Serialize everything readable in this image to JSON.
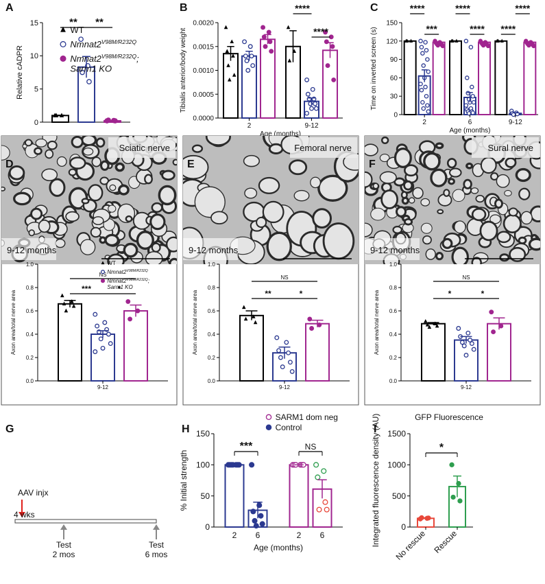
{
  "chart_data": [
    {
      "type": "bar",
      "panel": "A",
      "ylabel": "Relative cADPR",
      "categories": [
        null
      ],
      "ylim": [
        0,
        15
      ],
      "yticks": [
        0,
        5,
        10,
        15
      ],
      "series": [
        {
          "name": "WT",
          "color": "#000000",
          "marker": "triangle",
          "values": [
            1.0
          ],
          "errors": [
            0.05
          ],
          "points": [
            [
              1.0,
              1.0,
              1.0
            ]
          ]
        },
        {
          "name": "Nmnat2",
          "name_sup": "V98M/R232Q",
          "color": "#2b3990",
          "marker": "open",
          "values": [
            8.3
          ],
          "errors": [
            1.6
          ],
          "points": [
            [
              12.5,
              8.5,
              7.5,
              6.1
            ]
          ]
        },
        {
          "name": "Nmnat2",
          "name_sup": "V98M/R232Q",
          "name_suffix": ";",
          "name_line2": "Sarm1 KO",
          "color": "#a0258f",
          "marker": "filled",
          "values": [
            0.2
          ],
          "errors": [
            0.05
          ],
          "points": [
            [
              0.2,
              0.25,
              0.3,
              0.2
            ]
          ]
        }
      ],
      "significance": [
        {
          "label": "**",
          "from": [
            0,
            0
          ],
          "to": [
            0,
            1
          ]
        },
        {
          "label": "**",
          "from": [
            0,
            1
          ],
          "to": [
            0,
            2
          ]
        }
      ]
    },
    {
      "type": "bar",
      "panel": "B",
      "ylabel": "Tibialis anterior/body weight",
      "xlabel": "Age (months)",
      "categories": [
        "2",
        "9-12"
      ],
      "ylim": [
        0,
        0.002
      ],
      "yticks": [
        {
          "value": 0,
          "label": "0.0000"
        },
        0.0005,
        {
          "value": 0.001,
          "label": "0.0010"
        },
        0.0015,
        {
          "value": 0.002,
          "label": "0.0020"
        }
      ],
      "series": [
        {
          "color": "#000000",
          "marker": "triangle",
          "values": [
            0.00135,
            0.0015
          ],
          "errors": [
            0.00015,
            0.00033
          ],
          "points": [
            [
              0.0019,
              0.0016,
              0.0014,
              0.0013,
              0.0011,
              0.0009,
              0.0008
            ],
            [
              0.0019,
              0.0014,
              0.0012
            ]
          ]
        },
        {
          "color": "#2b3990",
          "marker": "open",
          "values": [
            0.0013,
            0.00035
          ],
          "errors": [
            0.0001,
            7e-05
          ],
          "points": [
            [
              0.0016,
              0.0015,
              0.0013,
              0.0013,
              0.0012,
              0.0011,
              0.001
            ],
            [
              0.0008,
              0.0006,
              0.0005,
              0.0004,
              0.0004,
              0.0003,
              0.0003,
              0.0002,
              0.0002,
              0.0001
            ]
          ]
        },
        {
          "color": "#a0258f",
          "marker": "filled",
          "values": [
            0.00165,
            0.00142
          ],
          "errors": [
            0.0001,
            0.00016
          ],
          "points": [
            [
              0.0019,
              0.0018,
              0.0017,
              0.0016,
              0.0015,
              0.0014
            ],
            [
              0.0018,
              0.0017,
              0.0016,
              0.0015,
              0.0011,
              0.0008
            ]
          ]
        }
      ],
      "significance": [
        {
          "label": "****",
          "from": [
            1,
            0
          ],
          "to": [
            1,
            1
          ]
        },
        {
          "label": "****",
          "from": [
            1,
            1
          ],
          "to": [
            1,
            2
          ]
        }
      ]
    },
    {
      "type": "bar",
      "panel": "C",
      "ylabel": "Time on inverted screen (s)",
      "xlabel": "Age (months)",
      "categories": [
        "2",
        "6",
        "9-12"
      ],
      "ylim": [
        0,
        150
      ],
      "yticks": [
        0,
        30,
        60,
        90,
        120,
        150
      ],
      "series": [
        {
          "color": "#000000",
          "marker": "triangle",
          "values": [
            120,
            120,
            120
          ],
          "errors": [
            0,
            0,
            0
          ],
          "points": [
            [
              120,
              120,
              120
            ],
            [
              120,
              120,
              120
            ],
            [
              120,
              120,
              120
            ]
          ]
        },
        {
          "color": "#2b3990",
          "marker": "open",
          "values": [
            63,
            28,
            2
          ],
          "errors": [
            10,
            8,
            1
          ],
          "points": [
            [
              120,
              118,
              110,
              105,
              100,
              90,
              80,
              70,
              60,
              50,
              45,
              40,
              30,
              20,
              15,
              10,
              5
            ],
            [
              120,
              110,
              60,
              45,
              35,
              30,
              25,
              20,
              20,
              15,
              10,
              8,
              5,
              5,
              3,
              2
            ],
            [
              6,
              3,
              2,
              1,
              0
            ]
          ]
        },
        {
          "color": "#a0258f",
          "marker": "filled",
          "values": [
            118,
            118,
            118
          ],
          "errors": [
            1,
            1,
            1
          ],
          "points": [
            [
              120,
              118,
              117,
              116,
              115,
              114,
              113,
              112
            ],
            [
              120,
              118,
              117,
              116,
              115,
              114,
              113,
              112
            ],
            [
              120,
              118,
              117,
              116,
              115,
              114,
              113,
              112
            ]
          ]
        }
      ],
      "significance": [
        {
          "label": "****",
          "from": [
            0,
            0
          ],
          "to": [
            0,
            1
          ]
        },
        {
          "label": "***",
          "from": [
            0,
            1
          ],
          "to": [
            0,
            2
          ]
        },
        {
          "label": "****",
          "from": [
            1,
            0
          ],
          "to": [
            1,
            1
          ]
        },
        {
          "label": "****",
          "from": [
            1,
            1
          ],
          "to": [
            1,
            2
          ]
        },
        {
          "label": "****",
          "from": [
            2,
            0
          ],
          "to": [
            2,
            1
          ]
        },
        {
          "label": "****",
          "from": [
            2,
            1
          ],
          "to": [
            2,
            2
          ]
        }
      ]
    },
    {
      "type": "bar",
      "panel": "D",
      "image_label": "Sciatic nerve",
      "image_caption": "9-12 months",
      "ylabel": "Axon area/total nerve area",
      "categories": [
        "9-12"
      ],
      "ylim": [
        0,
        1.0
      ],
      "yticks": [
        {
          "value": 0,
          "label": "0.0"
        },
        0.2,
        0.4,
        0.6,
        0.8,
        {
          "value": 1.0,
          "label": "1.0"
        }
      ],
      "series": [
        {
          "name": "WT",
          "color": "#000000",
          "marker": "triangle",
          "values": [
            0.66
          ],
          "errors": [
            0.03
          ],
          "points": [
            [
              0.73,
              0.68,
              0.66,
              0.64,
              0.6
            ]
          ]
        },
        {
          "name": "Nmnat2",
          "name_sup": "V98M/R232Q",
          "color": "#2b3990",
          "marker": "open",
          "values": [
            0.4
          ],
          "errors": [
            0.03
          ],
          "points": [
            [
              0.57,
              0.5,
              0.47,
              0.44,
              0.42,
              0.4,
              0.36,
              0.32,
              0.28,
              0.25
            ]
          ]
        },
        {
          "name": "Nmnat2",
          "name_sup": "V98M/R232Q",
          "name_suffix": ";",
          "name_line2": "Sarm1 KO",
          "color": "#a0258f",
          "marker": "filled",
          "values": [
            0.6
          ],
          "errors": [
            0.05
          ],
          "points": [
            [
              0.68,
              0.6,
              0.53
            ]
          ]
        }
      ],
      "significance": [
        {
          "label": "NS",
          "from": [
            0,
            0
          ],
          "to": [
            0,
            2
          ]
        },
        {
          "label": "***",
          "from": [
            0,
            0
          ],
          "to": [
            0,
            1
          ]
        },
        {
          "label": "*",
          "from": [
            0,
            1
          ],
          "to": [
            0,
            2
          ]
        }
      ]
    },
    {
      "type": "bar",
      "panel": "E",
      "image_label": "Femoral nerve",
      "image_caption": "9-12 months",
      "ylabel": "Axon area/total nerve area",
      "categories": [
        "9-12"
      ],
      "ylim": [
        0,
        1.0
      ],
      "yticks": [
        {
          "value": 0,
          "label": "0.0"
        },
        0.2,
        0.4,
        0.6,
        0.8,
        {
          "value": 1.0,
          "label": "1.0"
        }
      ],
      "series": [
        {
          "color": "#000000",
          "marker": "triangle",
          "values": [
            0.56
          ],
          "errors": [
            0.04
          ],
          "points": [
            [
              0.63,
              0.55,
              0.53,
              0.5
            ]
          ]
        },
        {
          "color": "#2b3990",
          "marker": "open",
          "values": [
            0.24
          ],
          "errors": [
            0.05
          ],
          "points": [
            [
              0.37,
              0.33,
              0.26,
              0.24,
              0.2,
              0.16,
              0.12,
              0.08
            ]
          ]
        },
        {
          "color": "#a0258f",
          "marker": "filled",
          "values": [
            0.49
          ],
          "errors": [
            0.03
          ],
          "points": [
            [
              0.53,
              0.48,
              0.45
            ]
          ]
        }
      ],
      "significance": [
        {
          "label": "NS",
          "from": [
            0,
            0
          ],
          "to": [
            0,
            2
          ]
        },
        {
          "label": "**",
          "from": [
            0,
            0
          ],
          "to": [
            0,
            1
          ]
        },
        {
          "label": "*",
          "from": [
            0,
            1
          ],
          "to": [
            0,
            2
          ]
        }
      ]
    },
    {
      "type": "bar",
      "panel": "F",
      "image_label": "Sural nerve",
      "image_caption": "9-12 months",
      "ylabel": "Axon area/total nerve area",
      "categories": [
        "9-12"
      ],
      "ylim": [
        0,
        1.0
      ],
      "yticks": [
        {
          "value": 0,
          "label": "0.0"
        },
        0.2,
        0.4,
        0.6,
        0.8,
        {
          "value": 1.0,
          "label": "1.0"
        }
      ],
      "series": [
        {
          "color": "#000000",
          "marker": "triangle",
          "values": [
            0.49
          ],
          "errors": [
            0.01
          ],
          "points": [
            [
              0.51,
              0.49,
              0.48,
              0.47,
              0.46
            ]
          ]
        },
        {
          "color": "#2b3990",
          "marker": "open",
          "values": [
            0.35
          ],
          "errors": [
            0.03
          ],
          "points": [
            [
              0.45,
              0.41,
              0.38,
              0.35,
              0.33,
              0.32,
              0.3,
              0.27,
              0.22
            ]
          ]
        },
        {
          "color": "#a0258f",
          "marker": "filled",
          "values": [
            0.49
          ],
          "errors": [
            0.05
          ],
          "points": [
            [
              0.59,
              0.47,
              0.42
            ]
          ]
        }
      ],
      "significance": [
        {
          "label": "NS",
          "from": [
            0,
            0
          ],
          "to": [
            0,
            2
          ]
        },
        {
          "label": "*",
          "from": [
            0,
            0
          ],
          "to": [
            0,
            1
          ]
        },
        {
          "label": "*",
          "from": [
            0,
            1
          ],
          "to": [
            0,
            2
          ]
        }
      ]
    },
    {
      "type": "bar",
      "panel": "H",
      "ylabel": "% Initial strength",
      "xlabel": "Age (months)",
      "ylim": [
        0,
        150
      ],
      "yticks": [
        0,
        50,
        100,
        150
      ],
      "series": [
        {
          "name": "Control",
          "color": "#2b3990",
          "marker": "filled",
          "categories": [
            "2",
            "6"
          ],
          "values": [
            100,
            27
          ],
          "errors": [
            0,
            13
          ],
          "points": [
            [
              100,
              100,
              100,
              100,
              100,
              100,
              100
            ],
            [
              100,
              35,
              25,
              18,
              10,
              5,
              2
            ]
          ]
        },
        {
          "name": "SARM1 dom neg",
          "color": "#a0258f",
          "marker": "open",
          "categories": [
            "2",
            "6"
          ],
          "values": [
            100,
            61
          ],
          "errors": [
            0,
            15
          ],
          "points": [
            [
              100,
              100,
              100,
              100,
              100,
              100
            ],
            [
              100,
              90,
              80,
              40,
              28,
              28
            ]
          ],
          "point_colors": [
            [
              "#a0258f",
              "#a0258f",
              "#a0258f",
              "#a0258f",
              "#a0258f",
              "#a0258f"
            ],
            [
              "#2e9e4f",
              "#2e9e4f",
              "#2e9e4f",
              "#e8483b",
              "#e8483b",
              "#e8483b"
            ]
          ]
        }
      ],
      "significance": [
        {
          "label": "***",
          "from": [
            0,
            0
          ],
          "to": [
            0,
            1
          ]
        },
        {
          "label": "NS",
          "from": [
            1,
            0
          ],
          "to": [
            1,
            1
          ]
        }
      ]
    },
    {
      "type": "bar",
      "panel": "I",
      "title": "GFP Fluorescence",
      "ylabel": "Integrated fluorescence density (AU)",
      "categories": [
        "No rescue",
        "Rescue"
      ],
      "ylim": [
        0,
        1500
      ],
      "yticks": [
        0,
        500,
        1000,
        1500
      ],
      "series": [
        {
          "colors": [
            "#e8483b",
            "#2e9e4f"
          ],
          "marker": "filled",
          "values": [
            140,
            650
          ],
          "errors": [
            10,
            170
          ],
          "points": [
            [
              130,
              140,
              150,
              145
            ],
            [
              1000,
              700,
              480,
              420
            ]
          ]
        }
      ],
      "significance": [
        {
          "label": "*",
          "from": [
            0,
            0
          ],
          "to": [
            1,
            0
          ]
        }
      ]
    }
  ],
  "diagram": {
    "panel": "G",
    "injection": "AAV injx",
    "start": "4 wks",
    "tests": [
      {
        "label": "Test",
        "time": "2 mos"
      },
      {
        "label": "Test",
        "time": "6 mos"
      }
    ]
  }
}
